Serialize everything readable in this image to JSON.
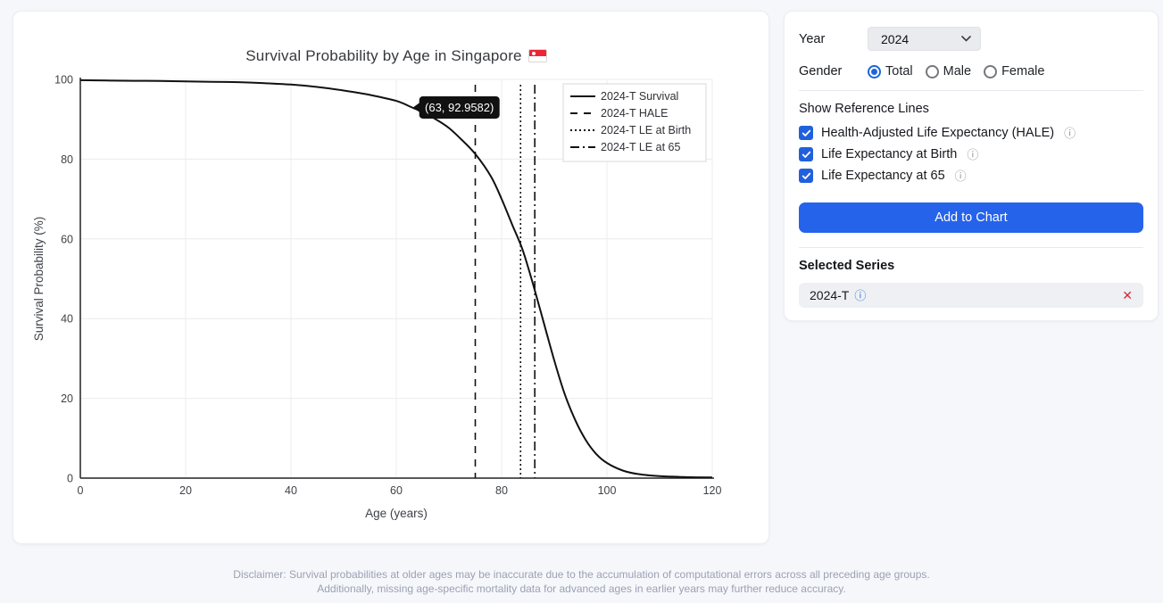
{
  "chart_card": {
    "title": "Survival Probability by Age in Singapore",
    "flag": "singapore-flag"
  },
  "chart_data": {
    "type": "line",
    "title": "Survival Probability by Age in Singapore",
    "xlabel": "Age (years)",
    "ylabel": "Survival Probability (%)",
    "xlim": [
      0,
      120
    ],
    "ylim": [
      0,
      100
    ],
    "xticks": [
      0,
      20,
      40,
      60,
      80,
      100,
      120
    ],
    "yticks": [
      0,
      20,
      40,
      60,
      80,
      100
    ],
    "grid": true,
    "legend_position": "top-right",
    "series": [
      {
        "name": "2024-T Survival",
        "style": "solid",
        "color": "#111111",
        "points": [
          [
            0,
            99.8
          ],
          [
            5,
            99.7
          ],
          [
            10,
            99.65
          ],
          [
            15,
            99.6
          ],
          [
            20,
            99.5
          ],
          [
            25,
            99.4
          ],
          [
            30,
            99.3
          ],
          [
            35,
            99.05
          ],
          [
            40,
            98.7
          ],
          [
            45,
            98.1
          ],
          [
            50,
            97.2
          ],
          [
            55,
            96.1
          ],
          [
            60,
            94.6
          ],
          [
            63,
            92.96
          ],
          [
            65,
            91.8
          ],
          [
            68,
            89.6
          ],
          [
            70,
            87.8
          ],
          [
            72,
            85.4
          ],
          [
            75,
            81.3
          ],
          [
            78,
            75.6
          ],
          [
            80,
            70
          ],
          [
            82,
            63.6
          ],
          [
            84,
            57.2
          ],
          [
            86,
            48.5
          ],
          [
            88,
            39
          ],
          [
            90,
            29.5
          ],
          [
            92,
            21
          ],
          [
            94,
            14.5
          ],
          [
            96,
            9.5
          ],
          [
            98,
            6
          ],
          [
            100,
            3.8
          ],
          [
            103,
            1.9
          ],
          [
            106,
            1
          ],
          [
            110,
            0.5
          ],
          [
            115,
            0.25
          ],
          [
            120,
            0.15
          ]
        ]
      }
    ],
    "reference_lines": [
      {
        "name": "2024-T HALE",
        "style": "dashed",
        "x": 75.0
      },
      {
        "name": "2024-T LE at Birth",
        "style": "dotted",
        "x": 83.6
      },
      {
        "name": "2024-T LE at 65",
        "style": "dashdot",
        "x": 86.3
      }
    ],
    "legend_entries": [
      "2024-T Survival",
      "2024-T HALE",
      "2024-T LE at Birth",
      "2024-T LE at 65"
    ],
    "tooltip": {
      "x": 63,
      "y": 92.9582,
      "label": "(63, 92.9582)"
    }
  },
  "controls": {
    "year_label": "Year",
    "year_value": "2024",
    "gender_label": "Gender",
    "gender_options": [
      {
        "label": "Total",
        "selected": true
      },
      {
        "label": "Male",
        "selected": false
      },
      {
        "label": "Female",
        "selected": false
      }
    ],
    "reference_section_label": "Show Reference Lines",
    "checkboxes": [
      {
        "label": "Health-Adjusted Life Expectancy (HALE)",
        "checked": true
      },
      {
        "label": "Life Expectancy at Birth",
        "checked": true
      },
      {
        "label": "Life Expectancy at 65",
        "checked": true
      }
    ],
    "info_icon": "ⓘ",
    "add_button_label": "Add to Chart",
    "selected_series_label": "Selected Series",
    "selected_series": [
      {
        "label": "2024-T",
        "remove_label": "✕"
      }
    ],
    "accent_color": "#2563eb"
  },
  "disclaimer": {
    "line1": "Disclaimer: Survival probabilities at older ages may be inaccurate due to the accumulation of computational errors across all preceding age groups.",
    "line2": "Additionally, missing age-specific mortality data for advanced ages in earlier years may further reduce accuracy."
  }
}
